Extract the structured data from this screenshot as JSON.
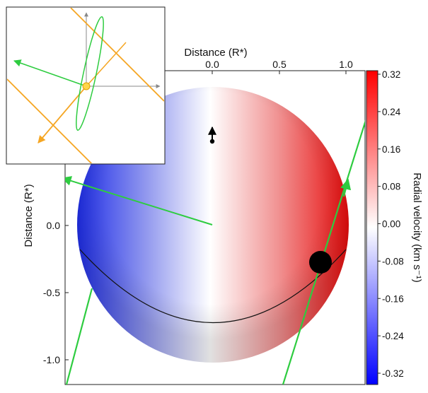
{
  "top_axis": {
    "title": "Distance (R*)",
    "ticks": [
      "0.0",
      "0.5",
      "1.0"
    ]
  },
  "left_axis": {
    "title": "Distance (R*)",
    "ticks": [
      "0.0",
      "-0.5",
      "-1.0"
    ]
  },
  "colorbar": {
    "title": "Radial velocity (km s⁻¹)",
    "ticks": [
      "0.32",
      "0.24",
      "0.16",
      "0.08",
      "0.00",
      "-0.08",
      "-0.16",
      "-0.24",
      "-0.32"
    ],
    "colors": {
      "positive": "#ff0000",
      "zero": "#ffffff",
      "negative": "#0000ff"
    }
  },
  "diagram": {
    "star_gradient": [
      "#1f2ee6",
      "#ffffff",
      "#e60b0b"
    ],
    "orbit_color": "#2ecc40",
    "inset_axis_color": "#f5a623",
    "planet_color": "#000000",
    "spin_marker_color": "#000000"
  }
}
